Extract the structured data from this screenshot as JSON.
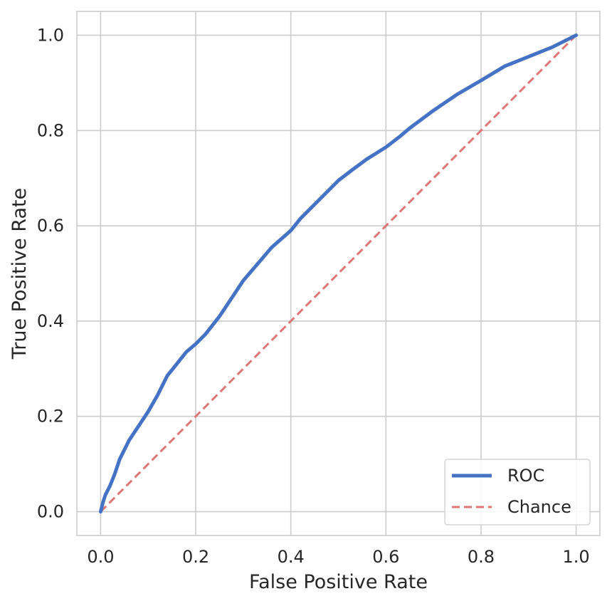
{
  "chart_data": {
    "type": "line",
    "title": "",
    "xlabel": "False Positive Rate",
    "ylabel": "True Positive Rate",
    "xlim": [
      -0.05,
      1.05
    ],
    "ylim": [
      -0.05,
      1.05
    ],
    "grid": true,
    "xticks": [
      0.0,
      0.2,
      0.4,
      0.6,
      0.8,
      1.0
    ],
    "yticks": [
      0.0,
      0.2,
      0.4,
      0.6,
      0.8,
      1.0
    ],
    "xtick_labels": [
      "0.0",
      "0.2",
      "0.4",
      "0.6",
      "0.8",
      "1.0"
    ],
    "ytick_labels": [
      "0.0",
      "0.2",
      "0.4",
      "0.6",
      "0.8",
      "1.0"
    ],
    "legend_position": "bottom-right",
    "series": [
      {
        "name": "ROC",
        "color": "#4472c4",
        "style": "solid",
        "x": [
          0.0,
          0.005,
          0.01,
          0.02,
          0.03,
          0.04,
          0.05,
          0.06,
          0.08,
          0.1,
          0.12,
          0.14,
          0.16,
          0.18,
          0.2,
          0.22,
          0.25,
          0.28,
          0.3,
          0.33,
          0.36,
          0.4,
          0.42,
          0.45,
          0.48,
          0.5,
          0.53,
          0.56,
          0.6,
          0.63,
          0.65,
          0.7,
          0.75,
          0.8,
          0.85,
          0.9,
          0.95,
          1.0
        ],
        "y": [
          0.0,
          0.02,
          0.035,
          0.055,
          0.08,
          0.11,
          0.13,
          0.15,
          0.18,
          0.21,
          0.245,
          0.285,
          0.31,
          0.335,
          0.352,
          0.372,
          0.41,
          0.455,
          0.485,
          0.52,
          0.555,
          0.59,
          0.615,
          0.645,
          0.675,
          0.695,
          0.718,
          0.74,
          0.765,
          0.788,
          0.805,
          0.842,
          0.876,
          0.905,
          0.935,
          0.955,
          0.975,
          1.0
        ]
      },
      {
        "name": "Chance",
        "color": "#dd7777",
        "style": "dashed",
        "x": [
          0.0,
          1.0
        ],
        "y": [
          0.0,
          1.0
        ]
      }
    ]
  }
}
